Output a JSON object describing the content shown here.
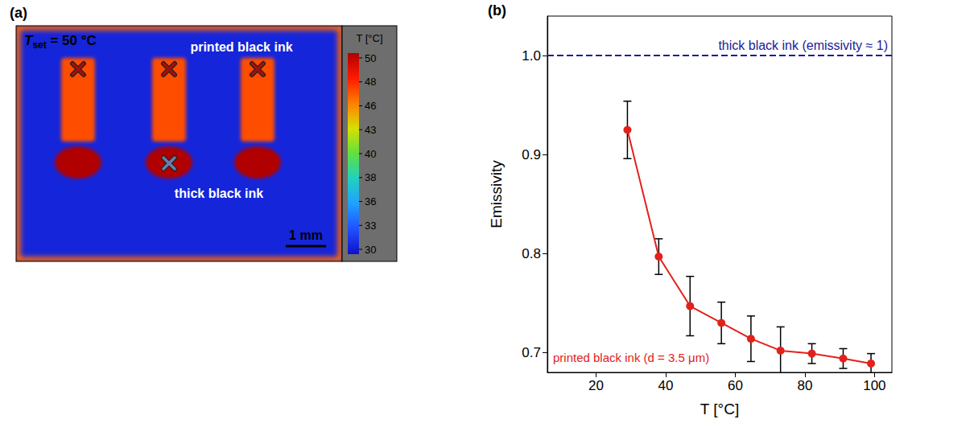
{
  "panel_a": {
    "letter": "(a)",
    "setpoint": {
      "symbol": "T",
      "subscript": "set",
      "text": " = 50 °C"
    },
    "printed_label": "printed black ink",
    "thick_label": "thick black ink",
    "scale_bar": "1 mm",
    "colorbar": {
      "title": "T [°C]",
      "range": [
        30,
        50
      ],
      "ticks": [
        50,
        48,
        46,
        43,
        40,
        38,
        36,
        33,
        30
      ]
    },
    "background_temperature": 31,
    "printed_temperature": 47,
    "thick_temperature": 50
  },
  "chart_data": {
    "type": "line",
    "letter": "(b)",
    "xlabel": "T [°C]",
    "ylabel": "Emissivity",
    "xlim": [
      6,
      105
    ],
    "ylim": [
      0.68,
      1.04
    ],
    "xticks": [
      20,
      40,
      60,
      80,
      100
    ],
    "yticks": [
      0.7,
      0.8,
      0.9,
      {
        "value": 1,
        "label": "1.0"
      }
    ],
    "grid": false,
    "x": [
      29,
      38,
      47,
      56,
      64.5,
      73,
      82,
      91,
      99
    ],
    "series": [
      {
        "name": "printed black ink (d = 3.5 μm)",
        "color": "#e3211c",
        "marker": "circle",
        "values": [
          0.925,
          0.797,
          0.747,
          0.73,
          0.714,
          0.702,
          0.699,
          0.694,
          0.689
        ],
        "errors": [
          0.029,
          0.018,
          0.03,
          0.021,
          0.023,
          0.024,
          0.01,
          0.01,
          0.01
        ]
      }
    ],
    "reference_line": {
      "value": 1,
      "label": "thick black ink (emissivity ≈ 1)",
      "color": "#1c1c96",
      "line_style": "dashed"
    }
  }
}
